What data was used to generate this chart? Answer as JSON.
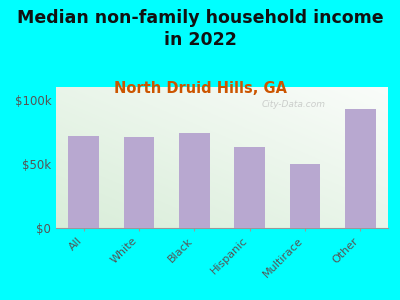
{
  "title": "Median non-family household income\nin 2022",
  "subtitle": "North Druid Hills, GA",
  "categories": [
    "All",
    "White",
    "Black",
    "Hispanic",
    "Multirace",
    "Other"
  ],
  "values": [
    72000,
    71000,
    74000,
    63000,
    50000,
    93000
  ],
  "bar_color": "#b8a8d0",
  "background_color": "#00ffff",
  "ylim": [
    0,
    110000
  ],
  "yticks": [
    0,
    50000,
    100000
  ],
  "ytick_labels": [
    "$0",
    "$50k",
    "$100k"
  ],
  "title_fontsize": 12.5,
  "subtitle_fontsize": 10.5,
  "subtitle_color": "#cc5500",
  "title_color": "#111111",
  "tick_color": "#555555",
  "watermark": "City-Data.com"
}
